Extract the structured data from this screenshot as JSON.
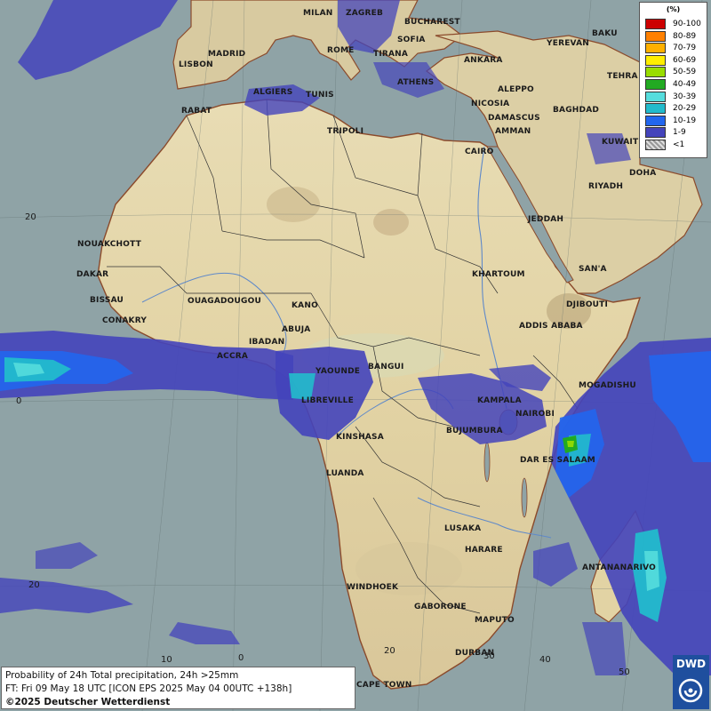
{
  "legend": {
    "unit": "(%)",
    "items": [
      {
        "label": "90-100",
        "color": "#cc0000"
      },
      {
        "label": "80-89",
        "color": "#ff8000"
      },
      {
        "label": "70-79",
        "color": "#ffb000"
      },
      {
        "label": "60-69",
        "color": "#ffee00"
      },
      {
        "label": "50-59",
        "color": "#99dd00"
      },
      {
        "label": "40-49",
        "color": "#22aa22"
      },
      {
        "label": "30-39",
        "color": "#55dddd"
      },
      {
        "label": "20-29",
        "color": "#22bbcc"
      },
      {
        "label": "10-19",
        "color": "#2266ee"
      },
      {
        "label": "1-9",
        "color": "#4444bb"
      },
      {
        "label": "<1",
        "color": "#bbbbbb"
      }
    ]
  },
  "info": {
    "line1": "Probability of 24h Total precipitation, 24h >25mm",
    "line2": "FT: Fri 09 May 18 UTC [ICON EPS 2025 May 04 00UTC +138h]",
    "line3": "©2025 Deutscher Wetterdienst"
  },
  "logo": {
    "text": "DWD"
  },
  "grid_labels": {
    "lat_20n": "20",
    "lat_0": "0",
    "lat_20s": "20",
    "lon_0": "0",
    "lon_10": "10",
    "lon_20": "20",
    "lon_30": "30",
    "lon_40": "40",
    "lon_50": "50"
  },
  "cities": {
    "milan": "MILAN",
    "zagreb": "ZAGREB",
    "bucharest": "BUCHAREST",
    "sofia": "SOFIA",
    "rome": "ROME",
    "tirana": "TIRANA",
    "madrid": "MADRID",
    "lisbon": "LISBON",
    "athens": "ATHENS",
    "ankara": "ANKARA",
    "baku": "BAKU",
    "yerevan": "YEREVAN",
    "tehran": "TEHRA",
    "algiers": "ALGIERS",
    "tunis": "TUNIS",
    "rabat": "RABAT",
    "tripoli": "TRIPOLI",
    "aleppo": "ALEPPO",
    "nicosia": "NICOSIA",
    "damascus": "DAMASCUS",
    "amman": "AMMAN",
    "baghdad": "BAGHDAD",
    "kuwait": "KUWAIT",
    "doha": "DOHA",
    "cairo": "CAIRO",
    "riyadh": "RIYADH",
    "jeddah": "JEDDAH",
    "sanaa": "SAN'A",
    "nouakchott": "NOUAKCHOTT",
    "dakar": "DAKAR",
    "bissau": "BISSAU",
    "conakry": "CONAKRY",
    "ouagadougou": "OUAGADOUGOU",
    "kano": "KANO",
    "abuja": "ABUJA",
    "ibadan": "IBADAN",
    "accra": "ACCRA",
    "khartoum": "KHARTOUM",
    "djibouti": "DJIBOUTI",
    "addis": "ADDIS ABABA",
    "yaounde": "YAOUNDE",
    "bangui": "BANGUI",
    "libreville": "LIBREVILLE",
    "mogadishu": "MOGADISHU",
    "kampala": "KAMPALA",
    "nairobi": "NAIROBI",
    "kinshasa": "KINSHASA",
    "bujumbura": "BUJUMBURA",
    "daressalaam": "DAR ES SALAAM",
    "luanda": "LUANDA",
    "lusaka": "LUSAKA",
    "harare": "HARARE",
    "antananarivo": "ANTANANARIVO",
    "windhoek": "WINDHOEK",
    "gaborone": "GABORONE",
    "maputo": "MAPUTO",
    "durban": "DURBAN",
    "capetown": "CAPE TOWN"
  }
}
